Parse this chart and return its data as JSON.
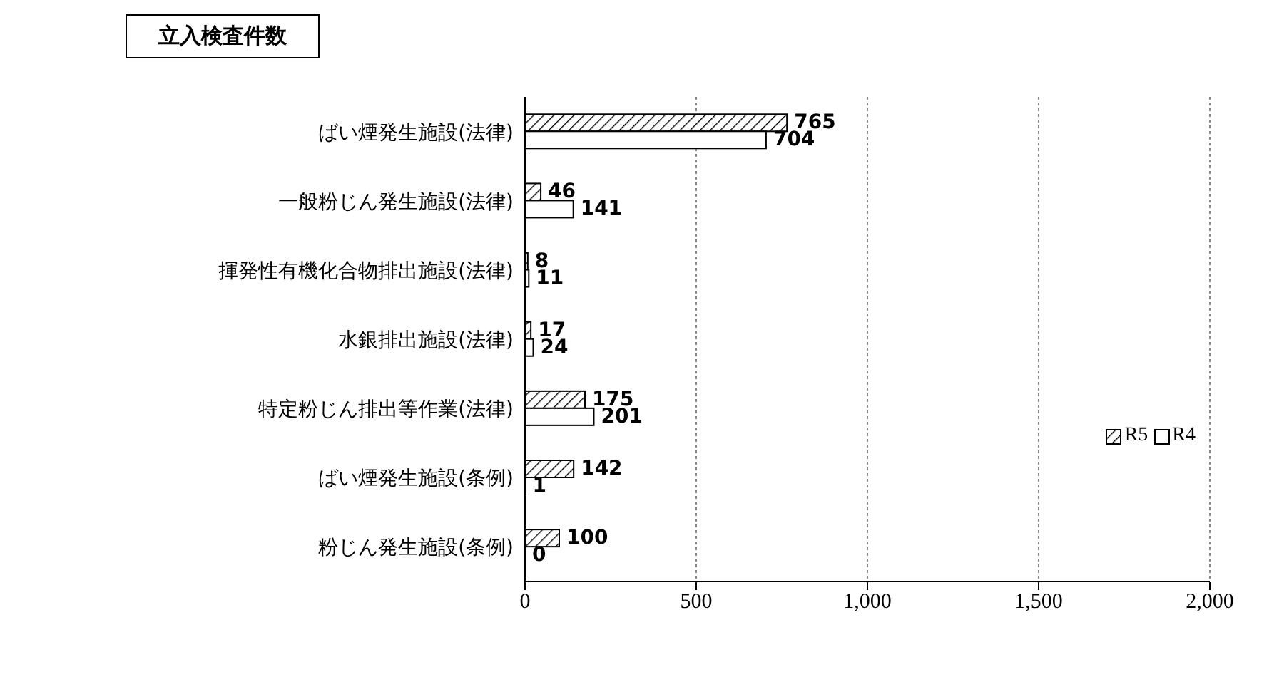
{
  "chart_data": {
    "type": "bar",
    "orientation": "horizontal",
    "title": "立入検査件数",
    "categories": [
      "ばい煙発生施設(法律)",
      "一般粉じん発生施設(法律)",
      "揮発性有機化合物排出施設(法律)",
      "水銀排出施設(法律)",
      "特定粉じん排出等作業(法律)",
      "ばい煙発生施設(条例)",
      "粉じん発生施設(条例)"
    ],
    "series": [
      {
        "name": "R5",
        "color": "#000000",
        "values": [
          765,
          46,
          8,
          17,
          175,
          142,
          100
        ]
      },
      {
        "name": "R4",
        "color": "#ffffff",
        "values": [
          704,
          141,
          11,
          24,
          201,
          1,
          0
        ]
      }
    ],
    "xlim": [
      0,
      2000
    ],
    "xticks": [
      0,
      500,
      {
        "value": 1000,
        "label": "1,000"
      },
      {
        "value": 1500,
        "label": "1,500"
      },
      {
        "value": 2000,
        "label": "2,000"
      }
    ],
    "grid": "x",
    "legend": "right",
    "data_labels": true
  }
}
